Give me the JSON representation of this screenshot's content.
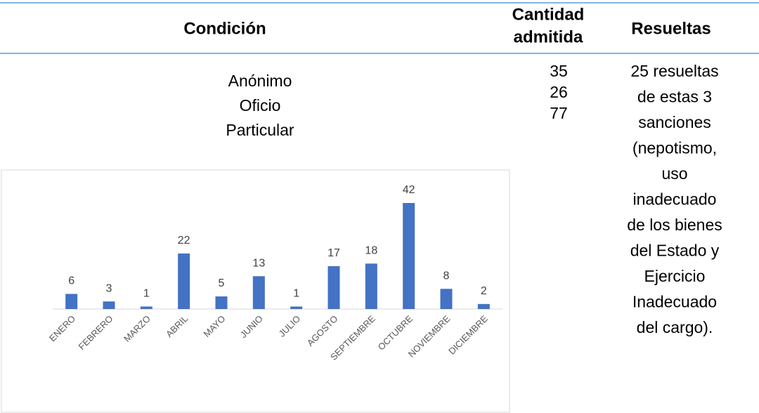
{
  "table": {
    "headers": [
      "Condición",
      [
        "Cantidad",
        "admitida"
      ],
      "Resueltas"
    ],
    "conditions": [
      "Anónimo",
      "Oficio",
      "Particular"
    ],
    "quantities": [
      35,
      26,
      77
    ],
    "resueltas": [
      "25 resueltas",
      "de estas 3",
      "sanciones",
      "(nepotismo,",
      "uso",
      "inadecuado",
      "de los bienes",
      "del Estado y",
      "Ejercicio",
      "Inadecuado",
      "del cargo)."
    ]
  },
  "chart_data": {
    "type": "bar",
    "categories": [
      "ENERO",
      "FEBRERO",
      "MARZO",
      "ABRIL",
      "MAYO",
      "JUNIO",
      "JULIO",
      "AGOSTO",
      "SEPTIEMBRE",
      "OCTUBRE",
      "NOVIEMBRE",
      "DICIEMBRE"
    ],
    "values": [
      6,
      3,
      1,
      22,
      5,
      13,
      1,
      17,
      18,
      42,
      8,
      2
    ],
    "color": "#4472c4"
  }
}
